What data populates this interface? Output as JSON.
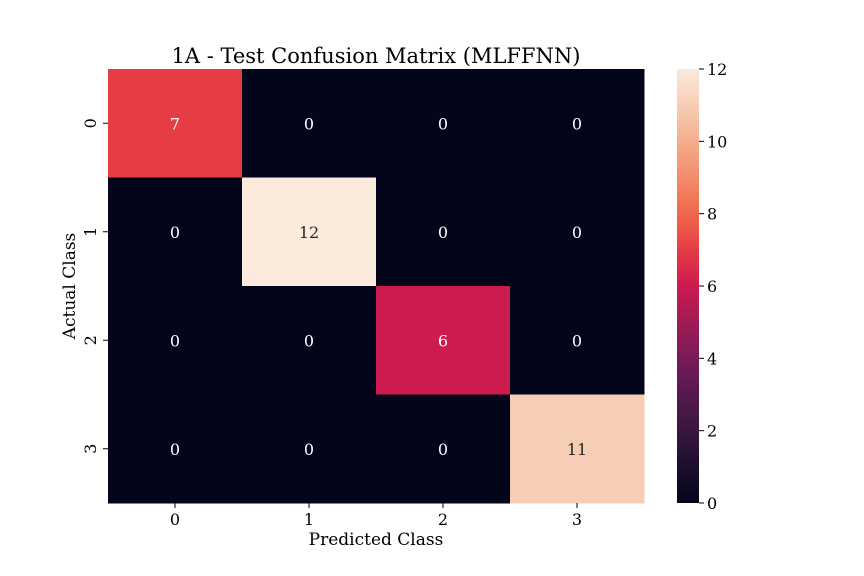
{
  "chart_data": {
    "type": "heatmap",
    "title": "1A - Test Confusion Matrix (MLFFNN)",
    "xlabel": "Predicted Class",
    "ylabel": "Actual Class",
    "x_categories": [
      "0",
      "1",
      "2",
      "3"
    ],
    "y_categories": [
      "0",
      "1",
      "2",
      "3"
    ],
    "values": [
      [
        7,
        0,
        0,
        0
      ],
      [
        0,
        12,
        0,
        0
      ],
      [
        0,
        0,
        6,
        0
      ],
      [
        0,
        0,
        0,
        11
      ]
    ],
    "colormap": "rocket",
    "vmin": 0,
    "vmax": 12,
    "colorbar_ticks": [
      0,
      2,
      4,
      6,
      8,
      10,
      12
    ],
    "annotations_shown": true
  }
}
